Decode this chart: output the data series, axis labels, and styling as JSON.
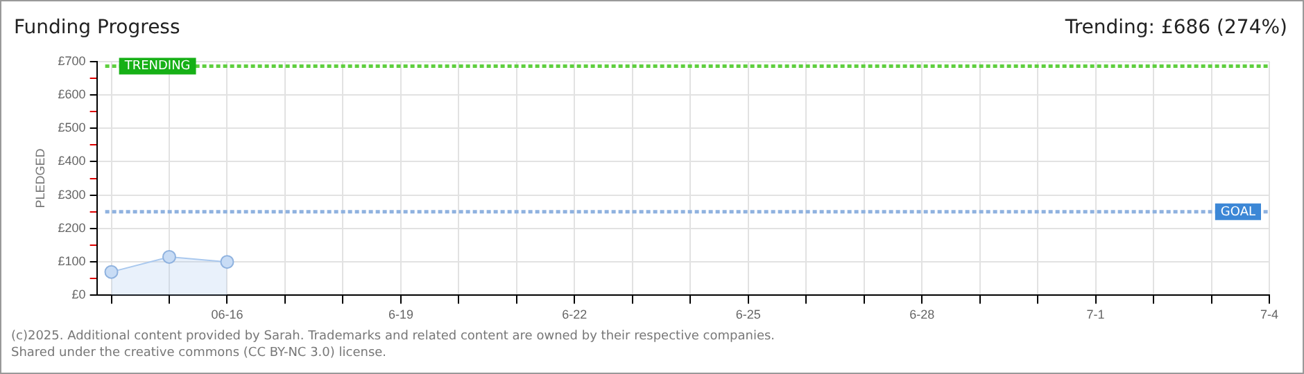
{
  "chart_data": {
    "type": "area",
    "title": "Funding Progress",
    "ylabel": "PLEDGED",
    "x": [
      "--06-14",
      "--06-15",
      "--06-16"
    ],
    "series": [
      {
        "color": "#a9c8ee",
        "values": [
          70,
          115,
          100
        ]
      }
    ],
    "xlim": [
      "--06-13T18:00",
      "--07-04"
    ],
    "xticks": [
      {
        "value": "--06-14",
        "label": null
      },
      {
        "value": "--06-15",
        "label": null
      },
      {
        "value": "--06-16",
        "label": "06-16"
      },
      {
        "value": "--06-17",
        "label": null
      },
      {
        "value": "--06-18",
        "label": null
      },
      {
        "value": "--06-19",
        "label": "6-19"
      },
      {
        "value": "--06-20",
        "label": null
      },
      {
        "value": "--06-21",
        "label": null
      },
      {
        "value": "--06-22",
        "label": "6-22"
      },
      {
        "value": "--06-23",
        "label": null
      },
      {
        "value": "--06-24",
        "label": null
      },
      {
        "value": "--06-25",
        "label": "6-25"
      },
      {
        "value": "--06-26",
        "label": null
      },
      {
        "value": "--06-27",
        "label": null
      },
      {
        "value": "--06-28",
        "label": "6-28"
      },
      {
        "value": "--06-29",
        "label": null
      },
      {
        "value": "--06-30",
        "label": null
      },
      {
        "value": "--07-01",
        "label": "7-1"
      },
      {
        "value": "--07-02",
        "label": null
      },
      {
        "value": "--07-03",
        "label": null
      },
      {
        "value": "--07-04",
        "label": "7-4"
      }
    ],
    "ylim": [
      0,
      700
    ],
    "yticks": [
      {
        "value": 0,
        "label": "£0"
      },
      {
        "value": 50,
        "label": null
      },
      {
        "value": 100,
        "label": "£100"
      },
      {
        "value": 150,
        "label": null
      },
      {
        "value": 200,
        "label": "£200"
      },
      {
        "value": 250,
        "label": null
      },
      {
        "value": 300,
        "label": "£300"
      },
      {
        "value": 350,
        "label": null
      },
      {
        "value": 400,
        "label": "£400"
      },
      {
        "value": 450,
        "label": null
      },
      {
        "value": 500,
        "label": "£500"
      },
      {
        "value": 550,
        "label": null
      },
      {
        "value": 600,
        "label": "£600"
      },
      {
        "value": 650,
        "label": null
      },
      {
        "value": 700,
        "label": "£700"
      }
    ],
    "ref_lines": [
      {
        "axis": "y",
        "value": 686,
        "label": "TRENDING",
        "color": "#5fcf3f",
        "line_style": "dotted"
      },
      {
        "axis": "y",
        "value": 250,
        "label": "GOAL",
        "color": "#8fb2df",
        "line_style": "dotted"
      }
    ],
    "annotations": [
      "Trending: £686 (274%)",
      "(c)2025. Additional content provided by Sarah. Trademarks and related content are owned by their respective companies.",
      "Shared under the creative commons (CC BY-NC 3.0) license."
    ],
    "grid": true,
    "legend": false,
    "marker": "circle",
    "line_style": "solid"
  }
}
